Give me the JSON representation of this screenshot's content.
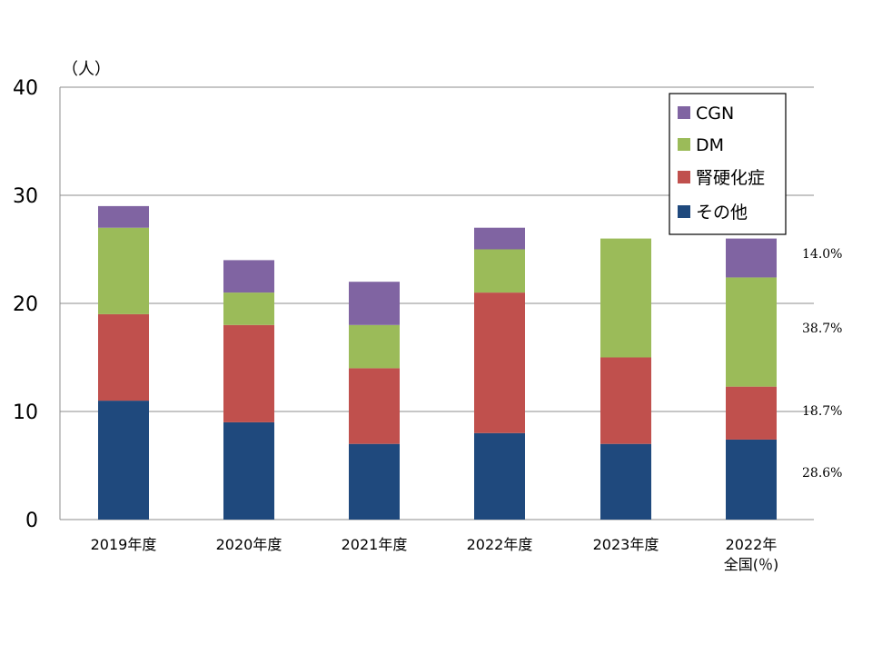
{
  "chart_data": {
    "type": "bar",
    "stacked": true,
    "y_unit_label": "（人）",
    "ylim": [
      0,
      40
    ],
    "yticks": [
      0,
      10,
      20,
      30,
      40
    ],
    "grid": true,
    "legend_position": "top-right",
    "categories": [
      "2019年度",
      "2020年度",
      "2021年度",
      "2022年度",
      "2023年度",
      "2022年\n全国(％)"
    ],
    "series": [
      {
        "name": "その他",
        "color": "#1F497D",
        "values": [
          11,
          9,
          7,
          8,
          7,
          7.4
        ]
      },
      {
        "name": "腎硬化症",
        "color": "#C0504D",
        "values": [
          8,
          9,
          7,
          13,
          8,
          4.9
        ]
      },
      {
        "name": "DM",
        "color": "#9BBB59",
        "values": [
          8,
          3,
          4,
          4,
          11,
          10.1
        ]
      },
      {
        "name": "CGN",
        "color": "#8064A2",
        "values": [
          2,
          3,
          4,
          2,
          0,
          3.6
        ]
      }
    ],
    "annotations": [
      {
        "series": "CGN",
        "label": "14.0%"
      },
      {
        "series": "DM",
        "label": "38.7%"
      },
      {
        "series": "腎硬化症",
        "label": "18.7%"
      },
      {
        "series": "その他",
        "label": "28.6%"
      }
    ]
  }
}
